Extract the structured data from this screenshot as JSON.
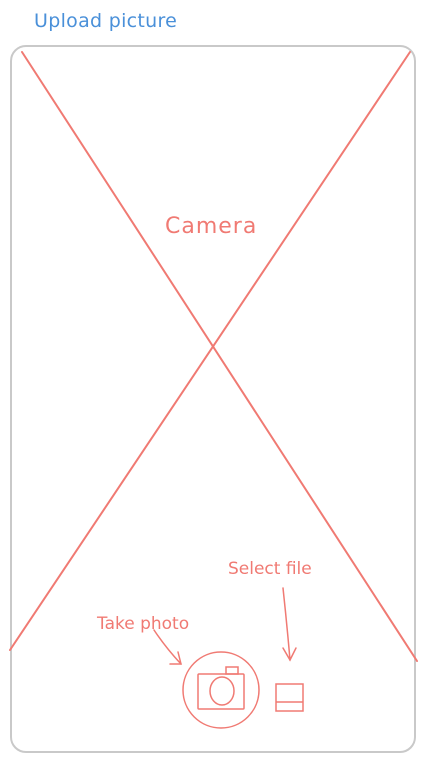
{
  "title": "Upload picture",
  "placeholder_label": "Camera",
  "annotations": {
    "take_photo": "Take photo",
    "select_file": "Select file"
  },
  "icons": {
    "capture": "camera-icon",
    "file": "file-icon"
  },
  "colors": {
    "title": "#4a90d9",
    "sketch": "#f07a73",
    "frame": "#c9c9c9"
  }
}
